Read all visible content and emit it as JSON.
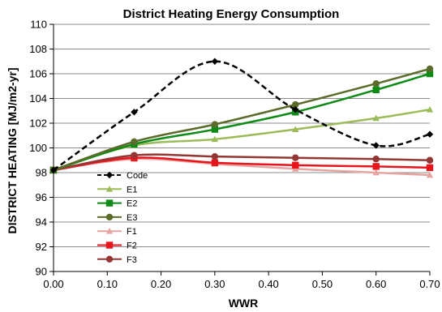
{
  "chart_data": {
    "type": "line",
    "title": "District Heating Energy Consumption",
    "xlabel": "WWR",
    "ylabel": "DISTRICT HEATING [MJ/m2-yr]",
    "xlim": [
      0,
      0.7
    ],
    "ylim": [
      90,
      110
    ],
    "x_ticks": [
      "0.00",
      "0.10",
      "0.20",
      "0.30",
      "0.40",
      "0.50",
      "0.60",
      "0.70"
    ],
    "y_ticks": [
      "90",
      "92",
      "94",
      "96",
      "98",
      "100",
      "102",
      "104",
      "106",
      "108",
      "110"
    ],
    "x": [
      0,
      0.15,
      0.3,
      0.45,
      0.6,
      0.7
    ],
    "grid": "horizontal",
    "legend_position": "lower-left",
    "series": [
      {
        "name": "Code",
        "color": "#000000",
        "marker": "diamond",
        "dashed": true,
        "values": [
          98.2,
          102.9,
          107.0,
          103.1,
          100.2,
          101.1
        ]
      },
      {
        "name": "E1",
        "color": "#9BBB59",
        "marker": "triangle",
        "dashed": false,
        "values": [
          98.2,
          100.2,
          100.7,
          101.5,
          102.4,
          103.1
        ]
      },
      {
        "name": "E2",
        "color": "#0E8A16",
        "marker": "square",
        "dashed": false,
        "values": [
          98.2,
          100.3,
          101.5,
          102.9,
          104.7,
          106.0
        ]
      },
      {
        "name": "E3",
        "color": "#5A6B2A",
        "marker": "circle",
        "dashed": false,
        "values": [
          98.2,
          100.5,
          101.9,
          103.5,
          105.2,
          106.4
        ]
      },
      {
        "name": "F1",
        "color": "#E6A3A0",
        "marker": "triangle",
        "dashed": false,
        "values": [
          98.2,
          99.1,
          98.7,
          98.3,
          98.0,
          97.8
        ]
      },
      {
        "name": "F2",
        "color": "#E8141C",
        "marker": "square",
        "dashed": false,
        "values": [
          98.2,
          99.2,
          98.8,
          98.6,
          98.5,
          98.4
        ]
      },
      {
        "name": "F3",
        "color": "#943634",
        "marker": "circle",
        "dashed": false,
        "values": [
          98.2,
          99.4,
          99.3,
          99.2,
          99.1,
          99.0
        ]
      }
    ]
  }
}
